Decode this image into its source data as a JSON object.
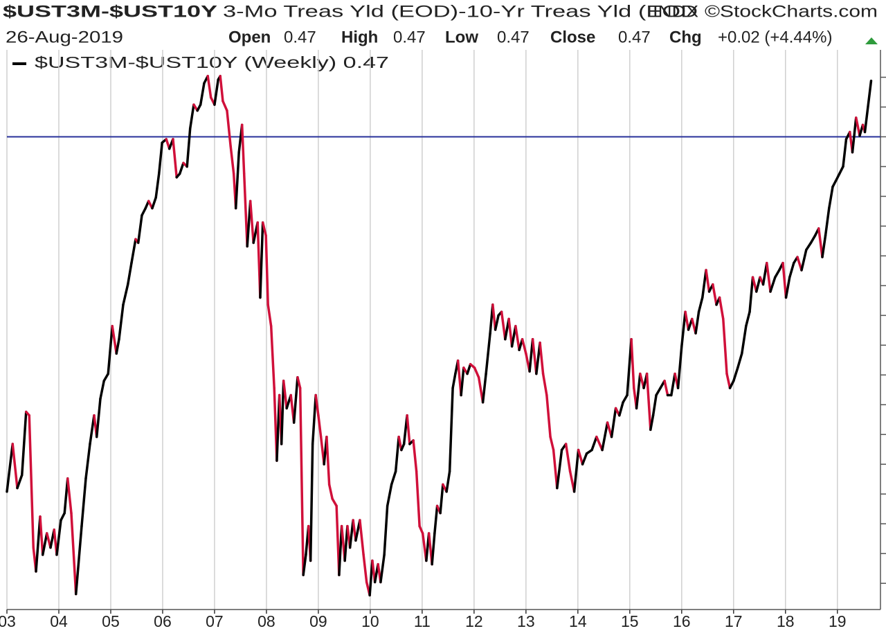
{
  "chart_data": {
    "type": "line",
    "title": "$UST3M-$UST10Y",
    "subtitle": "3-Mo Treas Yld (EOD)-10-Yr Treas Yld (EOD",
    "exchange": "INDX",
    "source": "©StockCharts.com",
    "date": "26-Aug-2019",
    "quote": [
      {
        "label": "Open",
        "value": 0.47
      },
      {
        "label": "High",
        "value": 0.47
      },
      {
        "label": "Low",
        "value": 0.47
      },
      {
        "label": "Close",
        "value": 0.47
      },
      {
        "label": "Chg",
        "value": "+0.02 (+4.44%)"
      }
    ],
    "xlim": [
      2003.0,
      2019.83
    ],
    "xticks": [
      {
        "value": 2003,
        "label": "03"
      },
      {
        "value": 2004,
        "label": "04"
      },
      {
        "value": 2005,
        "label": "05"
      },
      {
        "value": 2006,
        "label": "06"
      },
      {
        "value": 2007,
        "label": "07"
      },
      {
        "value": 2008,
        "label": "08"
      },
      {
        "value": 2009,
        "label": "09"
      },
      {
        "value": 2010,
        "label": "10"
      },
      {
        "value": 2011,
        "label": "11"
      },
      {
        "value": 2012,
        "label": "12"
      },
      {
        "value": 2013,
        "label": "13"
      },
      {
        "value": 2014,
        "label": "14"
      },
      {
        "value": 2015,
        "label": "15"
      },
      {
        "value": 2016,
        "label": "16"
      },
      {
        "value": 2017,
        "label": "17"
      },
      {
        "value": 2018,
        "label": "18"
      },
      {
        "value": 2019,
        "label": "19"
      }
    ],
    "xgrid": true,
    "ylim": [
      -3.97,
      0.73
    ],
    "ytick_marks": [
      0.5,
      0.25,
      0,
      -0.25,
      -0.5,
      -0.75,
      -1,
      -1.25,
      -1.5,
      -1.75,
      -2,
      -2.25,
      -2.5,
      -2.75,
      -3,
      -3.25,
      -3.5,
      -3.75
    ],
    "hline": {
      "value": 0,
      "color": "#27309a"
    },
    "series": [
      {
        "name": "$UST3M-$UST10Y (Weekly) 0.47",
        "up_color": "#000000",
        "down_color": "#d0103a",
        "x": [
          2003.0,
          2003.11,
          2003.2,
          2003.29,
          2003.37,
          2003.43,
          2003.51,
          2003.56,
          2003.64,
          2003.69,
          2003.77,
          2003.84,
          2003.91,
          2003.96,
          2004.04,
          2004.11,
          2004.17,
          2004.24,
          2004.33,
          2004.44,
          2004.52,
          2004.6,
          2004.68,
          2004.73,
          2004.8,
          2004.87,
          2004.95,
          2005.03,
          2005.11,
          2005.16,
          2005.24,
          2005.33,
          2005.4,
          2005.48,
          2005.53,
          2005.6,
          2005.67,
          2005.73,
          2005.8,
          2005.87,
          2005.93,
          2005.99,
          2006.07,
          2006.13,
          2006.2,
          2006.27,
          2006.33,
          2006.4,
          2006.47,
          2006.53,
          2006.6,
          2006.67,
          2006.73,
          2006.8,
          2006.87,
          2006.93,
          2007.0,
          2007.07,
          2007.11,
          2007.16,
          2007.24,
          2007.31,
          2007.37,
          2007.41,
          2007.47,
          2007.53,
          2007.57,
          2007.63,
          2007.69,
          2007.75,
          2007.83,
          2007.88,
          2007.93,
          2007.99,
          2008.03,
          2008.09,
          2008.15,
          2008.2,
          2008.25,
          2008.29,
          2008.33,
          2008.39,
          2008.47,
          2008.53,
          2008.6,
          2008.65,
          2008.71,
          2008.76,
          2008.81,
          2008.85,
          2008.89,
          2008.95,
          2009.0,
          2009.05,
          2009.11,
          2009.16,
          2009.21,
          2009.27,
          2009.35,
          2009.4,
          2009.45,
          2009.51,
          2009.56,
          2009.61,
          2009.67,
          2009.72,
          2009.8,
          2009.87,
          2009.93,
          2009.99,
          2010.04,
          2010.09,
          2010.15,
          2010.2,
          2010.27,
          2010.33,
          2010.41,
          2010.49,
          2010.55,
          2010.6,
          2010.65,
          2010.71,
          2010.76,
          2010.83,
          2010.89,
          2010.95,
          2011.01,
          2011.08,
          2011.13,
          2011.19,
          2011.24,
          2011.29,
          2011.35,
          2011.4,
          2011.47,
          2011.53,
          2011.59,
          2011.64,
          2011.69,
          2011.75,
          2011.8,
          2011.87,
          2011.93,
          2012.01,
          2012.09,
          2012.17,
          2012.23,
          2012.31,
          2012.36,
          2012.41,
          2012.47,
          2012.53,
          2012.6,
          2012.67,
          2012.73,
          2012.8,
          2012.87,
          2012.93,
          2013.0,
          2013.07,
          2013.13,
          2013.2,
          2013.27,
          2013.33,
          2013.4,
          2013.47,
          2013.53,
          2013.6,
          2013.69,
          2013.77,
          2013.85,
          2013.93,
          2014.01,
          2014.09,
          2014.17,
          2014.27,
          2014.36,
          2014.47,
          2014.57,
          2014.65,
          2014.73,
          2014.8,
          2014.87,
          2014.95,
          2015.03,
          2015.08,
          2015.13,
          2015.2,
          2015.27,
          2015.33,
          2015.4,
          2015.45,
          2015.51,
          2015.59,
          2015.67,
          2015.73,
          2015.8,
          2015.87,
          2015.93,
          2016.0,
          2016.07,
          2016.13,
          2016.2,
          2016.27,
          2016.33,
          2016.4,
          2016.47,
          2016.53,
          2016.6,
          2016.67,
          2016.73,
          2016.8,
          2016.87,
          2016.93,
          2017.0,
          2017.08,
          2017.16,
          2017.24,
          2017.31,
          2017.37,
          2017.44,
          2017.51,
          2017.57,
          2017.64,
          2017.71,
          2017.8,
          2017.88,
          2017.95,
          2018.01,
          2018.08,
          2018.16,
          2018.23,
          2018.31,
          2018.4,
          2018.49,
          2018.57,
          2018.64,
          2018.71,
          2018.77,
          2018.84,
          2018.91,
          2018.97,
          2019.04,
          2019.11,
          2019.17,
          2019.24,
          2019.29,
          2019.36,
          2019.43,
          2019.49,
          2019.53,
          2019.65
        ],
        "values": [
          -2.98,
          -2.58,
          -2.95,
          -2.84,
          -2.31,
          -2.34,
          -3.45,
          -3.65,
          -3.19,
          -3.51,
          -3.33,
          -3.45,
          -3.3,
          -3.51,
          -3.22,
          -3.16,
          -2.87,
          -3.16,
          -3.84,
          -3.27,
          -2.87,
          -2.58,
          -2.34,
          -2.52,
          -2.2,
          -2.05,
          -1.99,
          -1.59,
          -1.82,
          -1.7,
          -1.41,
          -1.24,
          -1.06,
          -0.86,
          -0.89,
          -0.66,
          -0.6,
          -0.54,
          -0.6,
          -0.51,
          -0.31,
          -0.05,
          -0.02,
          -0.1,
          -0.02,
          -0.34,
          -0.31,
          -0.22,
          -0.25,
          0.07,
          0.27,
          0.22,
          0.27,
          0.45,
          0.51,
          0.33,
          0.27,
          0.48,
          0.51,
          0.3,
          0.22,
          -0.08,
          -0.31,
          -0.6,
          -0.13,
          0.1,
          -0.31,
          -0.92,
          -0.54,
          -0.89,
          -0.72,
          -1.35,
          -0.72,
          -0.83,
          -1.41,
          -1.59,
          -2.11,
          -2.72,
          -2.17,
          -2.58,
          -2.05,
          -2.28,
          -2.17,
          -2.4,
          -2.02,
          -2.11,
          -3.68,
          -3.51,
          -3.27,
          -3.56,
          -2.58,
          -2.17,
          -2.34,
          -2.52,
          -2.75,
          -2.52,
          -2.92,
          -3.04,
          -3.1,
          -3.68,
          -3.27,
          -3.56,
          -3.27,
          -3.45,
          -3.22,
          -3.39,
          -3.22,
          -3.51,
          -3.74,
          -3.85,
          -3.56,
          -3.74,
          -3.59,
          -3.74,
          -3.51,
          -3.1,
          -2.92,
          -2.81,
          -2.52,
          -2.63,
          -2.58,
          -2.34,
          -2.58,
          -2.55,
          -2.81,
          -3.27,
          -3.33,
          -3.56,
          -3.33,
          -3.59,
          -3.33,
          -3.1,
          -3.16,
          -2.92,
          -2.98,
          -2.81,
          -2.11,
          -1.99,
          -1.88,
          -2.17,
          -1.94,
          -1.99,
          -1.91,
          -1.94,
          -2.02,
          -2.23,
          -1.99,
          -1.65,
          -1.41,
          -1.62,
          -1.5,
          -1.47,
          -1.7,
          -1.53,
          -1.76,
          -1.59,
          -1.79,
          -1.7,
          -1.82,
          -1.97,
          -1.7,
          -1.99,
          -1.73,
          -1.99,
          -2.17,
          -2.52,
          -2.63,
          -2.95,
          -2.63,
          -2.58,
          -2.81,
          -2.98,
          -2.63,
          -2.75,
          -2.66,
          -2.63,
          -2.52,
          -2.63,
          -2.4,
          -2.52,
          -2.28,
          -2.34,
          -2.23,
          -2.17,
          -1.7,
          -2.11,
          -2.28,
          -1.99,
          -2.11,
          -1.99,
          -2.46,
          -2.34,
          -2.17,
          -2.11,
          -2.05,
          -2.17,
          -2.17,
          -1.99,
          -2.11,
          -1.76,
          -1.47,
          -1.62,
          -1.53,
          -1.65,
          -1.47,
          -1.35,
          -1.12,
          -1.3,
          -1.24,
          -1.41,
          -1.35,
          -1.53,
          -1.99,
          -2.11,
          -2.05,
          -1.94,
          -1.82,
          -1.59,
          -1.47,
          -1.18,
          -1.3,
          -1.18,
          -1.24,
          -1.06,
          -1.3,
          -1.18,
          -1.12,
          -1.06,
          -1.35,
          -1.18,
          -1.06,
          -1.01,
          -1.12,
          -0.95,
          -0.89,
          -0.83,
          -0.77,
          -1.01,
          -0.83,
          -0.6,
          -0.42,
          -0.37,
          -0.31,
          -0.25,
          -0.02,
          0.04,
          -0.13,
          0.16,
          0.01,
          0.1,
          0.04,
          0.47
        ]
      }
    ]
  }
}
